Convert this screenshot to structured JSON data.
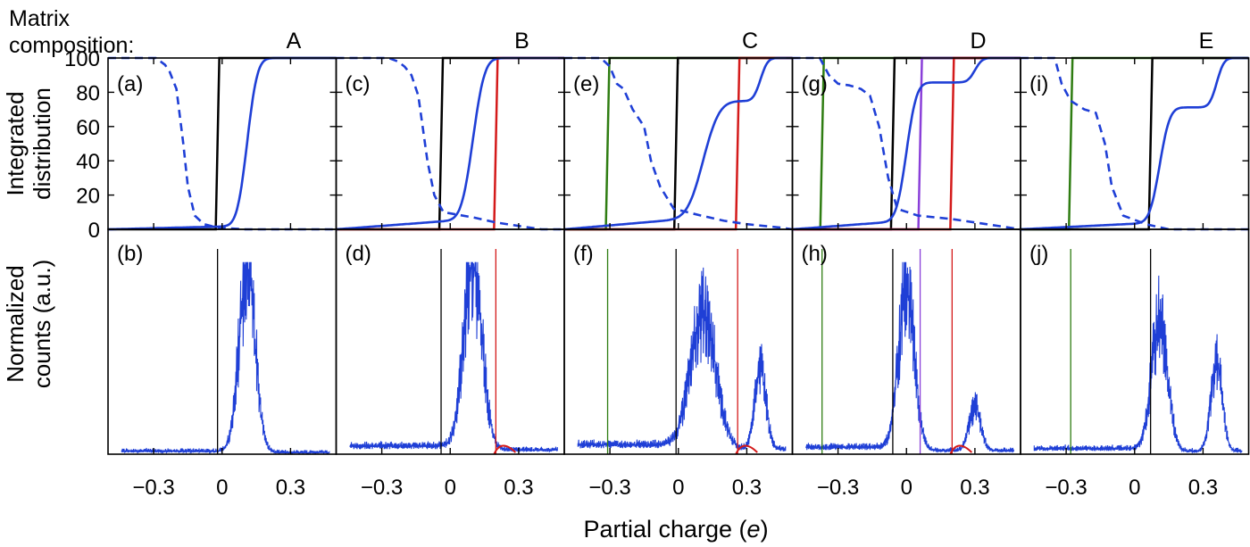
{
  "header": {
    "line1": "Matrix",
    "line2": "composition:"
  },
  "colors": {
    "blue": "#1f3fd6",
    "black": "#000000",
    "red": "#d41a1a",
    "green": "#2f7d12",
    "purple": "#8a3fd9"
  },
  "chart_data": {
    "type": "line",
    "xlabel_text": "Partial charge (",
    "xlabel_unit": "e",
    "xlabel_close": ")",
    "top_ylabel": [
      "Integrated",
      "distribution"
    ],
    "bottom_ylabel": [
      "Normalized",
      "counts (a.u.)"
    ],
    "top_yticks": [
      "0",
      "20",
      "40",
      "60",
      "80",
      "100"
    ],
    "top_ylim": [
      0,
      100
    ],
    "xlim": [
      -0.5,
      0.5
    ],
    "xticks": [
      -0.3,
      0,
      0.3
    ],
    "xtick_labels": [
      "−0.3",
      "0",
      "0.3"
    ],
    "panels": [
      {
        "matrix": "A",
        "top_label": "(a)",
        "bottom_label": "(b)",
        "vlines": [
          {
            "color": "black",
            "x": -0.02
          }
        ],
        "blue_dist": {
          "x0": 0.11,
          "x1": 0.37,
          "w0": 0.035,
          "w1": 0.03,
          "frac1": 0.0,
          "bg": 0.04
        },
        "dashed_points": [
          [
            -0.5,
            100
          ],
          [
            -0.29,
            100
          ],
          [
            -0.25,
            96
          ],
          [
            -0.23,
            92
          ],
          [
            -0.2,
            82
          ],
          [
            -0.17,
            50
          ],
          [
            -0.15,
            25
          ],
          [
            -0.12,
            8
          ],
          [
            -0.08,
            3
          ],
          [
            -0.02,
            1
          ],
          [
            0.1,
            0
          ],
          [
            0.5,
            0
          ]
        ]
      },
      {
        "matrix": "B",
        "top_label": "(c)",
        "bottom_label": "(d)",
        "vlines": [
          {
            "color": "black",
            "x": -0.04
          },
          {
            "color": "red",
            "x": 0.2
          }
        ],
        "blue_dist": {
          "x0": 0.1,
          "x1": 0.37,
          "w0": 0.04,
          "w1": 0.03,
          "frac1": 0.0,
          "bg": 0.12
        },
        "dashed_points": [
          [
            -0.5,
            100
          ],
          [
            -0.27,
            100
          ],
          [
            -0.23,
            98
          ],
          [
            -0.2,
            95
          ],
          [
            -0.17,
            90
          ],
          [
            -0.14,
            78
          ],
          [
            -0.1,
            40
          ],
          [
            -0.07,
            20
          ],
          [
            -0.03,
            10
          ],
          [
            0.1,
            7
          ],
          [
            0.2,
            4
          ],
          [
            0.3,
            2
          ],
          [
            0.4,
            0
          ],
          [
            0.5,
            0
          ]
        ]
      },
      {
        "matrix": "C",
        "top_label": "(e)",
        "bottom_label": "(f)",
        "vlines": [
          {
            "color": "green",
            "x": -0.31
          },
          {
            "color": "black",
            "x": -0.01
          },
          {
            "color": "red",
            "x": 0.26
          }
        ],
        "blue_dist": {
          "x0": 0.11,
          "x1": 0.36,
          "w0": 0.055,
          "w1": 0.025,
          "frac1": 0.27,
          "bg": 0.14
        },
        "dashed_points": [
          [
            -0.5,
            100
          ],
          [
            -0.34,
            100
          ],
          [
            -0.3,
            95
          ],
          [
            -0.27,
            85
          ],
          [
            -0.24,
            82
          ],
          [
            -0.2,
            70
          ],
          [
            -0.15,
            60
          ],
          [
            -0.12,
            40
          ],
          [
            -0.08,
            25
          ],
          [
            -0.02,
            12
          ],
          [
            0.1,
            8
          ],
          [
            0.2,
            5
          ],
          [
            0.3,
            3
          ],
          [
            0.45,
            1
          ],
          [
            0.5,
            0
          ]
        ]
      },
      {
        "matrix": "D",
        "top_label": "(g)",
        "bottom_label": "(h)",
        "vlines": [
          {
            "color": "green",
            "x": -0.37
          },
          {
            "color": "black",
            "x": -0.06
          },
          {
            "color": "purple",
            "x": 0.06
          },
          {
            "color": "red",
            "x": 0.2
          }
        ],
        "blue_dist": {
          "x0": 0.0,
          "x1": 0.3,
          "w0": 0.035,
          "w1": 0.025,
          "frac1": 0.15,
          "bg": 0.1
        },
        "dashed_points": [
          [
            -0.5,
            100
          ],
          [
            -0.38,
            100
          ],
          [
            -0.34,
            90
          ],
          [
            -0.3,
            85
          ],
          [
            -0.25,
            84
          ],
          [
            -0.2,
            82
          ],
          [
            -0.16,
            78
          ],
          [
            -0.12,
            60
          ],
          [
            -0.08,
            30
          ],
          [
            -0.04,
            12
          ],
          [
            0.05,
            8
          ],
          [
            0.2,
            6
          ],
          [
            0.35,
            3
          ],
          [
            0.5,
            0
          ]
        ]
      },
      {
        "matrix": "E",
        "top_label": "(i)",
        "bottom_label": "(j)",
        "vlines": [
          {
            "color": "green",
            "x": -0.28
          },
          {
            "color": "black",
            "x": 0.07
          }
        ],
        "blue_dist": {
          "x0": 0.11,
          "x1": 0.36,
          "w0": 0.035,
          "w1": 0.025,
          "frac1": 0.3,
          "bg": 0.08
        },
        "dashed_points": [
          [
            -0.5,
            100
          ],
          [
            -0.35,
            100
          ],
          [
            -0.32,
            85
          ],
          [
            -0.28,
            75
          ],
          [
            -0.22,
            70
          ],
          [
            -0.17,
            68
          ],
          [
            -0.13,
            50
          ],
          [
            -0.1,
            25
          ],
          [
            -0.05,
            8
          ],
          [
            0.05,
            3
          ],
          [
            0.15,
            0
          ],
          [
            0.5,
            0
          ]
        ]
      }
    ]
  }
}
